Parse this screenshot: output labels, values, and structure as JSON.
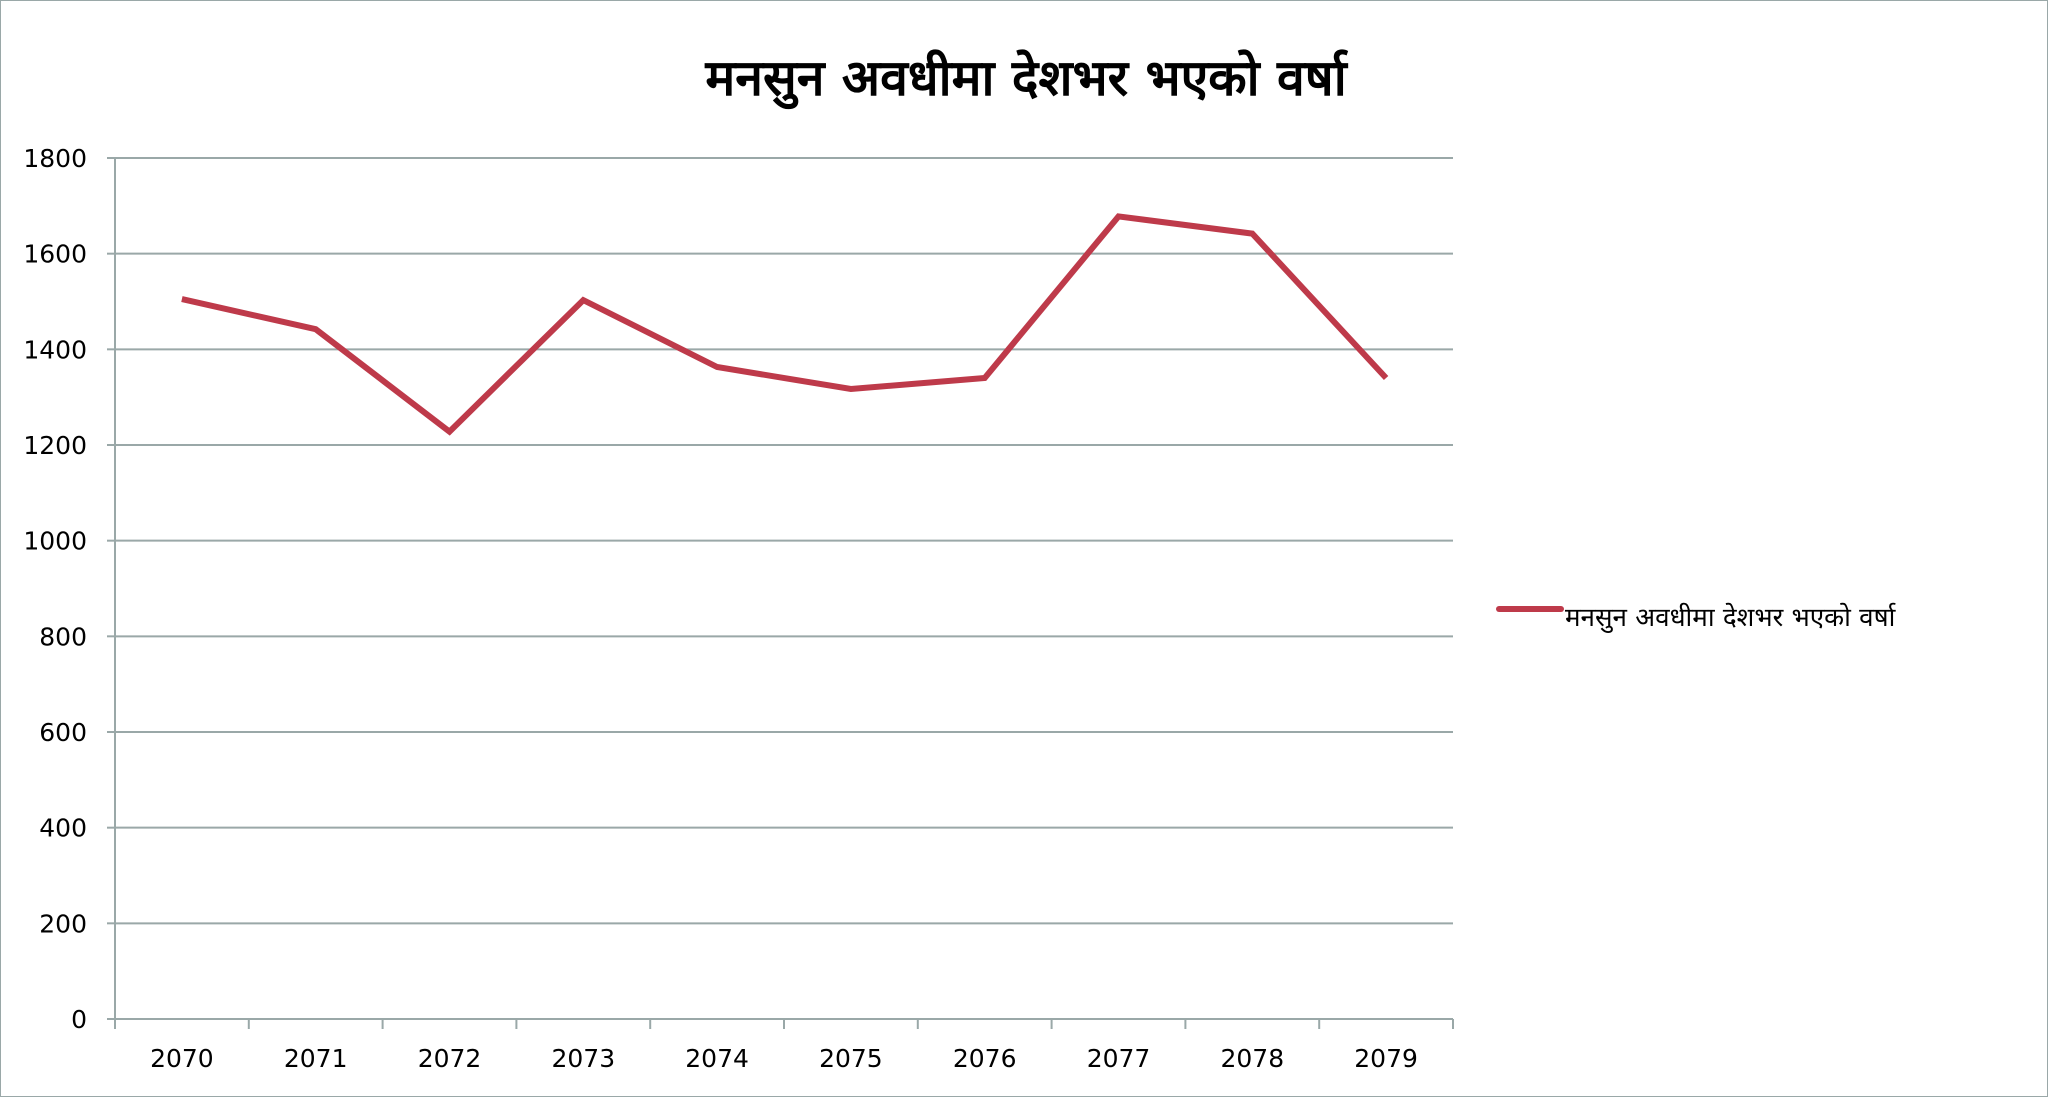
{
  "chart_data": {
    "type": "line",
    "title": "मनसुन अवधीमा देशभर भएको वर्षा",
    "xlabel": "",
    "ylabel": "",
    "categories": [
      "2070",
      "2071",
      "2072",
      "2073",
      "2074",
      "2075",
      "2076",
      "2077",
      "2078",
      "2079"
    ],
    "series": [
      {
        "name": "मनसुन अवधीमा देशभर भएको वर्षा",
        "values": [
          1505,
          1442,
          1228,
          1503,
          1363,
          1317,
          1340,
          1678,
          1642,
          1340
        ],
        "color": "#be3a4a"
      }
    ],
    "ylim": [
      0,
      1800
    ],
    "yticks": [
      "0",
      "200",
      "400",
      "600",
      "800",
      "1000",
      "1200",
      "1400",
      "1600",
      "1800"
    ],
    "grid": true,
    "legend_position": "right",
    "gridline_color": "#9aa8a8",
    "axis_color": "#9aa8a8"
  }
}
